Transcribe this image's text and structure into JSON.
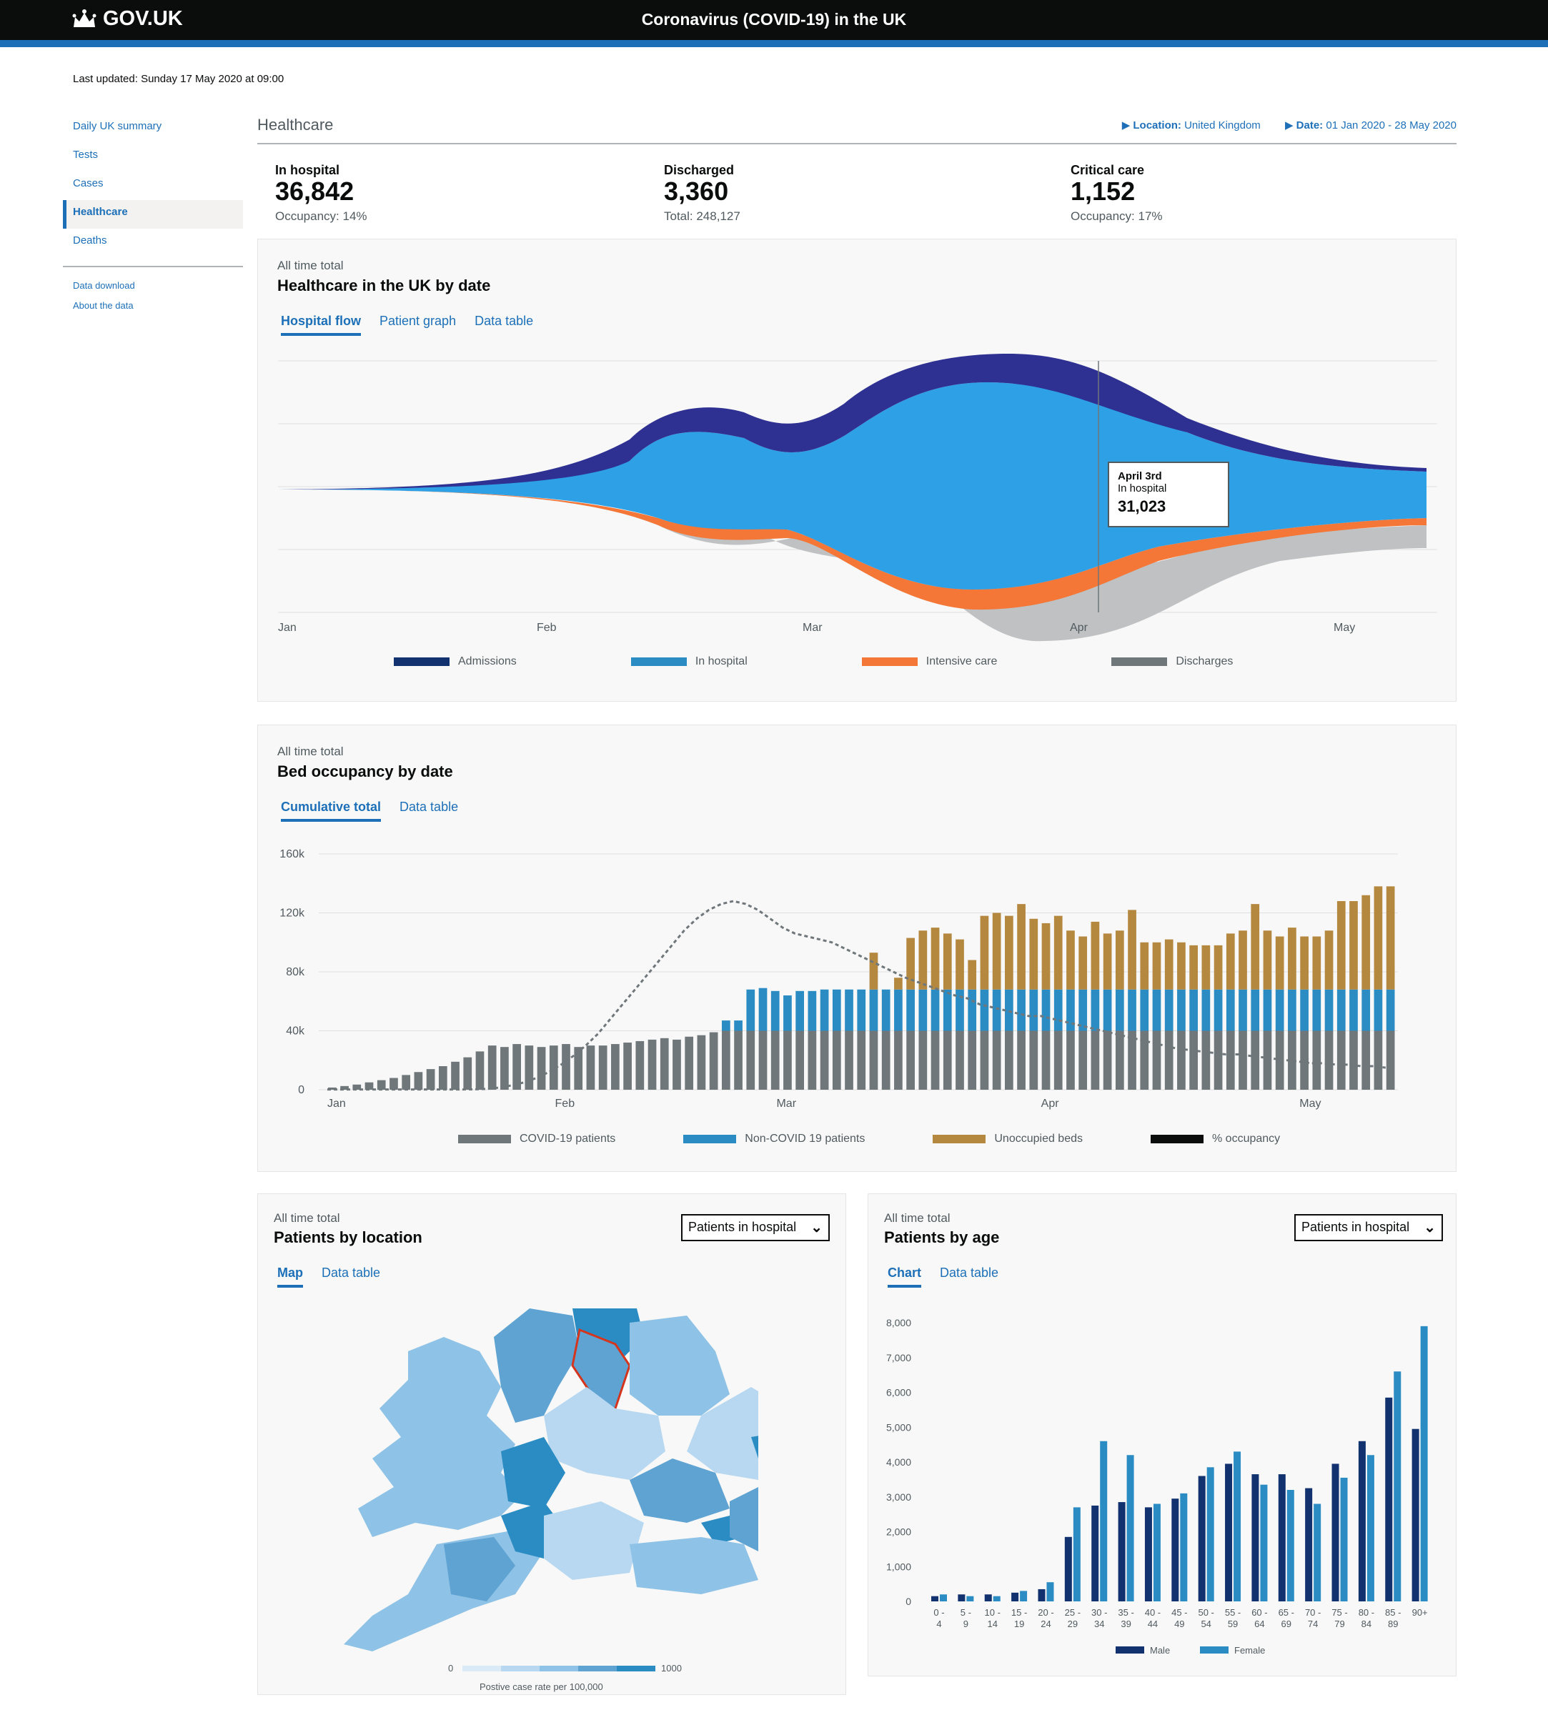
{
  "header": {
    "logo": "GOV.UK",
    "title": "Coronavirus (COVID-19) in the UK"
  },
  "last_updated": "Last updated: Sunday 17 May 2020 at 09:00",
  "nav": {
    "items": [
      "Daily UK summary",
      "Tests",
      "Cases",
      "Healthcare",
      "Deaths"
    ],
    "active": "Healthcare",
    "secondary": [
      "Data download",
      "About the data"
    ]
  },
  "page": {
    "heading": "Healthcare",
    "location_label": "Location:",
    "location_value": "United Kingdom",
    "date_label": "Date:",
    "date_value": "01 Jan 2020 - 28 May 2020"
  },
  "headline": [
    {
      "label": "In hospital",
      "value": "36,842",
      "sub": "Occupancy: 14%"
    },
    {
      "label": "Discharged",
      "value": "3,360",
      "sub": "Total: 248,127"
    },
    {
      "label": "Critical care",
      "value": "1,152",
      "sub": "Occupancy: 17%"
    }
  ],
  "flow_card": {
    "pre": "All time total",
    "title": "Healthcare in the UK by date",
    "tabs": [
      "Hospital flow",
      "Patient graph",
      "Data table"
    ],
    "tooltip": {
      "date": "April 3rd",
      "label": "In hospital",
      "value": "31,023"
    },
    "legend": [
      "Admissions",
      "In hospital",
      "Intensive care",
      "Discharges"
    ]
  },
  "bed_card": {
    "pre": "All time total",
    "title": "Bed occupancy by date",
    "tabs": [
      "Cumulative total",
      "Data table"
    ],
    "legend": [
      "COVID-19 patients",
      "Non-COVID 19 patients",
      "Unoccupied beds",
      "% occupancy"
    ]
  },
  "loc_card": {
    "pre": "All time total",
    "title": "Patients by location",
    "select": "Patients in hospital",
    "tabs": [
      "Map",
      "Data table"
    ],
    "scale_min": "0",
    "scale_max": "1000",
    "scale_caption": "Postive case rate per 100,000"
  },
  "age_card": {
    "pre": "All time total",
    "title": "Patients by age",
    "select": "Patients in hospital",
    "tabs": [
      "Chart",
      "Data table"
    ]
  },
  "colors": {
    "admissions": "#2e3192",
    "in_hospital": "#2ea1e6",
    "intensive": "#f47738",
    "discharges": "#bfc1c3",
    "covid": "#6f777b",
    "noncovid": "#2b8cc4",
    "unoccupied": "#b58840",
    "male": "#12316f",
    "female": "#2b8cc4"
  },
  "chart_data": [
    {
      "type": "area",
      "title": "Healthcare in the UK by date",
      "x_ticks": [
        "Jan",
        "Feb",
        "Mar",
        "Apr",
        "May"
      ],
      "series": [
        {
          "name": "Admissions"
        },
        {
          "name": "In hospital"
        },
        {
          "name": "Intensive care"
        },
        {
          "name": "Discharges"
        }
      ],
      "annotation": {
        "date": "April 3rd",
        "label": "In hospital",
        "value": 31023
      }
    },
    {
      "type": "bar",
      "title": "Bed occupancy by date",
      "stacked": true,
      "y_ticks": [
        "0",
        "40k",
        "80k",
        "120k",
        "160k"
      ],
      "x_ticks": [
        "Jan",
        "Feb",
        "Mar",
        "Apr",
        "May"
      ],
      "ylim": [
        0,
        160000
      ],
      "covid": [
        1500,
        2500,
        3500,
        5000,
        6500,
        8000,
        10000,
        12000,
        14000,
        16000,
        19000,
        22000,
        26000,
        30000,
        29000,
        31000,
        30000,
        29000,
        30000,
        31000,
        29000,
        30000,
        30000,
        31000,
        32000,
        33000,
        34000,
        35000,
        34000,
        36000,
        37000,
        39000,
        40000,
        40000,
        40000,
        40000,
        40000,
        40000,
        40000,
        40000,
        40000,
        40000,
        40000,
        40000,
        40000,
        40000,
        40000,
        40000,
        40000,
        40000,
        40000,
        40000,
        40000,
        40000,
        40000,
        40000,
        40000,
        40000,
        40000,
        40000,
        40000,
        40000,
        40000,
        40000,
        40000,
        40000,
        40000,
        40000,
        40000,
        40000,
        40000,
        40000,
        40000,
        40000,
        40000,
        40000,
        40000,
        40000,
        40000,
        40000,
        40000,
        40000,
        40000,
        40000,
        40000,
        40000,
        40000
      ],
      "noncovid": [
        0,
        0,
        0,
        0,
        0,
        0,
        0,
        0,
        0,
        0,
        0,
        0,
        0,
        0,
        0,
        0,
        0,
        0,
        0,
        0,
        0,
        0,
        0,
        0,
        0,
        0,
        0,
        0,
        0,
        0,
        0,
        0,
        7000,
        7000,
        28000,
        29000,
        27000,
        24000,
        27000,
        27000,
        28000,
        28000,
        28000,
        28000,
        28000,
        28000,
        28000,
        28000,
        28000,
        28000,
        28000,
        28000,
        28000,
        28000,
        28000,
        28000,
        28000,
        28000,
        28000,
        28000,
        28000,
        28000,
        28000,
        28000,
        28000,
        28000,
        28000,
        28000,
        28000,
        28000,
        28000,
        28000,
        28000,
        28000,
        28000,
        28000,
        28000,
        28000,
        28000,
        28000,
        28000,
        28000,
        28000,
        28000,
        28000,
        28000,
        28000
      ],
      "unoccupied": [
        0,
        0,
        0,
        0,
        0,
        0,
        0,
        0,
        0,
        0,
        0,
        0,
        0,
        0,
        0,
        0,
        0,
        0,
        0,
        0,
        0,
        0,
        0,
        0,
        0,
        0,
        0,
        0,
        0,
        0,
        0,
        0,
        0,
        0,
        0,
        0,
        0,
        0,
        0,
        0,
        0,
        0,
        0,
        0,
        25000,
        0,
        8000,
        35000,
        40000,
        42000,
        38000,
        34000,
        20000,
        50000,
        52000,
        50000,
        58000,
        48000,
        45000,
        50000,
        40000,
        36000,
        46000,
        38000,
        40000,
        54000,
        32000,
        32000,
        34000,
        32000,
        30000,
        30000,
        30000,
        38000,
        40000,
        58000,
        40000,
        36000,
        42000,
        36000,
        36000,
        40000,
        60000,
        60000,
        64000,
        70000,
        70000
      ],
      "occupancy_line": [
        200,
        200,
        200,
        200,
        200,
        200,
        200,
        200,
        200,
        200,
        200,
        200,
        300,
        600,
        1500,
        3000,
        5000,
        8000,
        12000,
        17000,
        23000,
        30000,
        38000,
        48000,
        58000,
        68000,
        78000,
        88000,
        98000,
        108000,
        116000,
        122000,
        126000,
        128000,
        126000,
        122000,
        116000,
        110000,
        106000,
        104000,
        102000,
        100000,
        96000,
        92000,
        88000,
        84000,
        80000,
        76000,
        73000,
        70000,
        67000,
        64000,
        62000,
        58000,
        56000,
        54000,
        52000,
        50000,
        50000,
        48000,
        46000,
        44000,
        42000,
        40000,
        38000,
        36000,
        34000,
        32000,
        30000,
        28000,
        27000,
        26000,
        25000,
        24000,
        24000,
        23000,
        22000,
        21000,
        20000,
        19000,
        18000,
        18000,
        17000,
        17000,
        16000,
        16000,
        15000
      ]
    },
    {
      "type": "bar",
      "title": "Patients by age",
      "categories": [
        "0 - 4",
        "5 - 9",
        "10 - 14",
        "15 - 19",
        "20 - 24",
        "25 - 29",
        "30 - 34",
        "35 - 39",
        "40 - 44",
        "45 - 49",
        "50 - 54",
        "55 - 59",
        "60 - 64",
        "65 - 69",
        "70 - 74",
        "75 - 79",
        "80 - 84",
        "85 - 89",
        "90+"
      ],
      "y_ticks": [
        "0",
        "1,000",
        "2,000",
        "3,000",
        "4,000",
        "5,000",
        "6,000",
        "7,000",
        "8,000"
      ],
      "ylim": [
        0,
        8000
      ],
      "series": [
        {
          "name": "Male",
          "values": [
            150,
            200,
            200,
            250,
            350,
            1850,
            2750,
            2850,
            2700,
            2950,
            3600,
            3950,
            3650,
            3650,
            3250,
            3950,
            4600,
            5850,
            4950
          ]
        },
        {
          "name": "Female",
          "values": [
            200,
            150,
            150,
            300,
            550,
            2700,
            4600,
            4200,
            2800,
            3100,
            3850,
            4300,
            3350,
            3200,
            2800,
            3550,
            4200,
            6600,
            7900
          ]
        }
      ]
    }
  ]
}
